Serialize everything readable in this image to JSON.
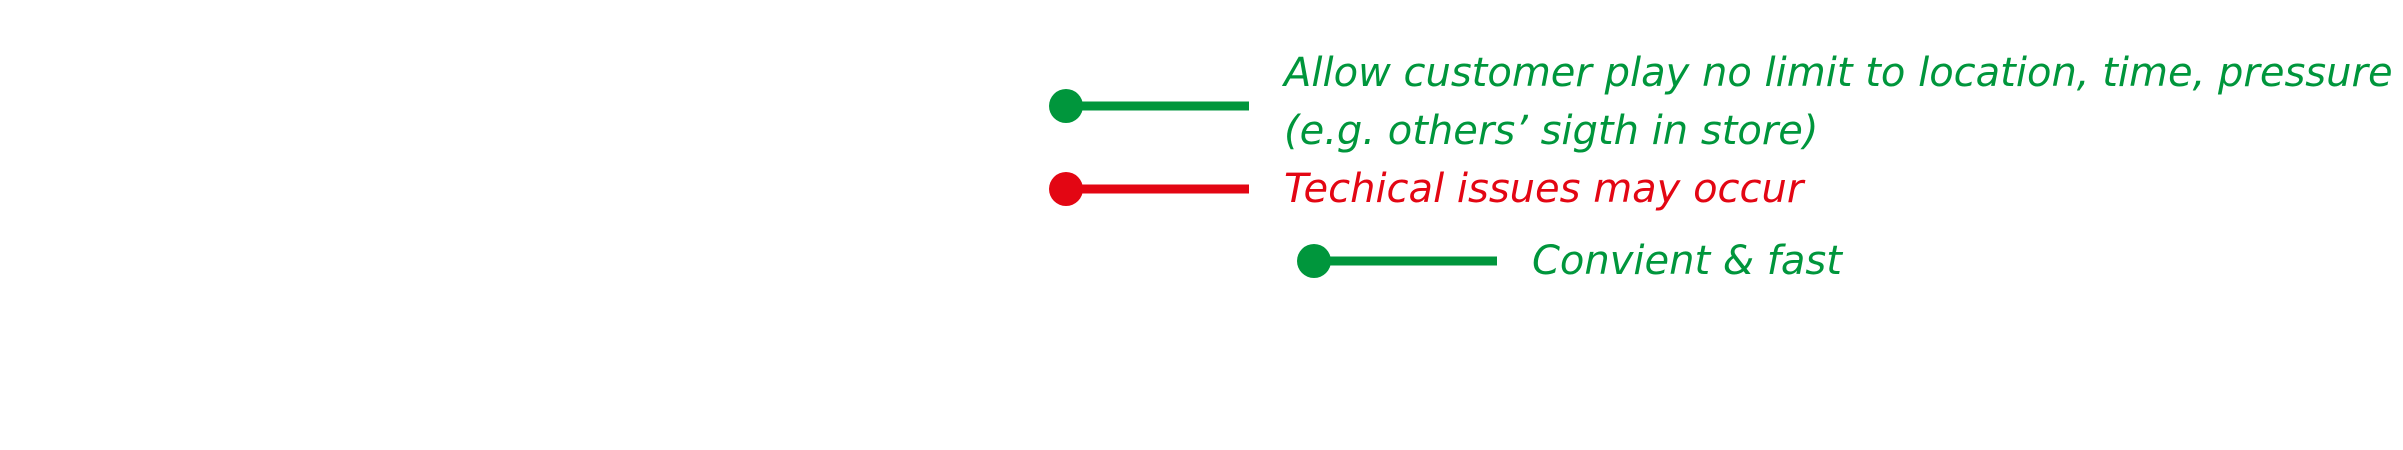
{
  "colors": {
    "positive": "#00963c",
    "negative": "#e30613"
  },
  "annotations": [
    {
      "kind": "positive",
      "line1": "Allow customer play no limit to location, time, pressure",
      "line2": "(e.g. others’ sigth in store)"
    },
    {
      "kind": "negative",
      "line1": "Techical issues may occur"
    },
    {
      "kind": "positive",
      "line1": "Convient & fast"
    }
  ]
}
